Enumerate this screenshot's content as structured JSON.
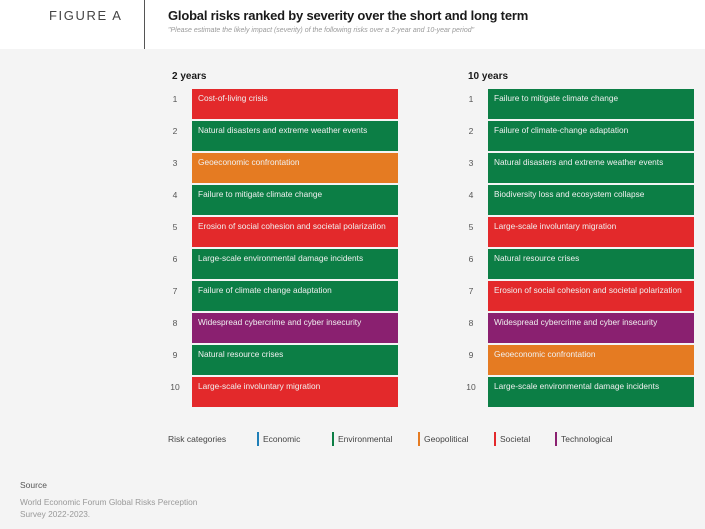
{
  "figure_label": "FIGURE A",
  "title": "Global risks ranked by severity over the short and long term",
  "subtitle": "\"Please estimate the likely impact (severity) of the following risks over a 2-year and 10-year period\"",
  "categories": {
    "Economic": "#1f7fb8",
    "Environmental": "#0c7e45",
    "Geopolitical": "#e57b22",
    "Societal": "#e3292b",
    "Technological": "#8a2070"
  },
  "legend": {
    "label": "Risk categories",
    "items": [
      {
        "name": "Economic",
        "color": "#1f7fb8"
      },
      {
        "name": "Environmental",
        "color": "#0c7e45"
      },
      {
        "name": "Geopolitical",
        "color": "#e57b22"
      },
      {
        "name": "Societal",
        "color": "#e3292b"
      },
      {
        "name": "Technological",
        "color": "#8a2070"
      }
    ]
  },
  "chart_data": {
    "type": "table",
    "title": "Global risks ranked by severity over the short and long term",
    "subtitle": "\"Please estimate the likely impact (severity) of the following risks over a 2-year and 10-year period\"",
    "columns": [
      {
        "heading": "2 years",
        "rows": [
          {
            "rank": "1",
            "risk": "Cost-of-living crisis",
            "category": "Societal"
          },
          {
            "rank": "2",
            "risk": "Natural disasters and extreme weather events",
            "category": "Environmental"
          },
          {
            "rank": "3",
            "risk": "Geoeconomic confrontation",
            "category": "Geopolitical"
          },
          {
            "rank": "4",
            "risk": "Failure to mitigate climate change",
            "category": "Environmental"
          },
          {
            "rank": "5",
            "risk": "Erosion of social cohesion and societal polarization",
            "category": "Societal"
          },
          {
            "rank": "6",
            "risk": "Large-scale environmental damage incidents",
            "category": "Environmental"
          },
          {
            "rank": "7",
            "risk": "Failure of climate change adaptation",
            "category": "Environmental"
          },
          {
            "rank": "8",
            "risk": "Widespread cybercrime and cyber insecurity",
            "category": "Technological"
          },
          {
            "rank": "9",
            "risk": "Natural resource crises",
            "category": "Environmental"
          },
          {
            "rank": "10",
            "risk": "Large-scale involuntary migration",
            "category": "Societal"
          }
        ]
      },
      {
        "heading": "10 years",
        "rows": [
          {
            "rank": "1",
            "risk": "Failure to mitigate climate change",
            "category": "Environmental"
          },
          {
            "rank": "2",
            "risk": "Failure of climate-change adaptation",
            "category": "Environmental"
          },
          {
            "rank": "3",
            "risk": "Natural disasters and extreme weather events",
            "category": "Environmental"
          },
          {
            "rank": "4",
            "risk": "Biodiversity loss and ecosystem collapse",
            "category": "Environmental"
          },
          {
            "rank": "5",
            "risk": "Large-scale involuntary migration",
            "category": "Societal"
          },
          {
            "rank": "6",
            "risk": "Natural resource crises",
            "category": "Environmental"
          },
          {
            "rank": "7",
            "risk": "Erosion of social cohesion and societal polarization",
            "category": "Societal"
          },
          {
            "rank": "8",
            "risk": "Widespread cybercrime and cyber insecurity",
            "category": "Technological"
          },
          {
            "rank": "9",
            "risk": "Geoeconomic confrontation",
            "category": "Geopolitical"
          },
          {
            "rank": "10",
            "risk": "Large-scale environmental damage incidents",
            "category": "Environmental"
          }
        ]
      }
    ]
  },
  "source": {
    "heading": "Source",
    "text": "World Economic Forum Global Risks Perception Survey 2022-2023."
  }
}
